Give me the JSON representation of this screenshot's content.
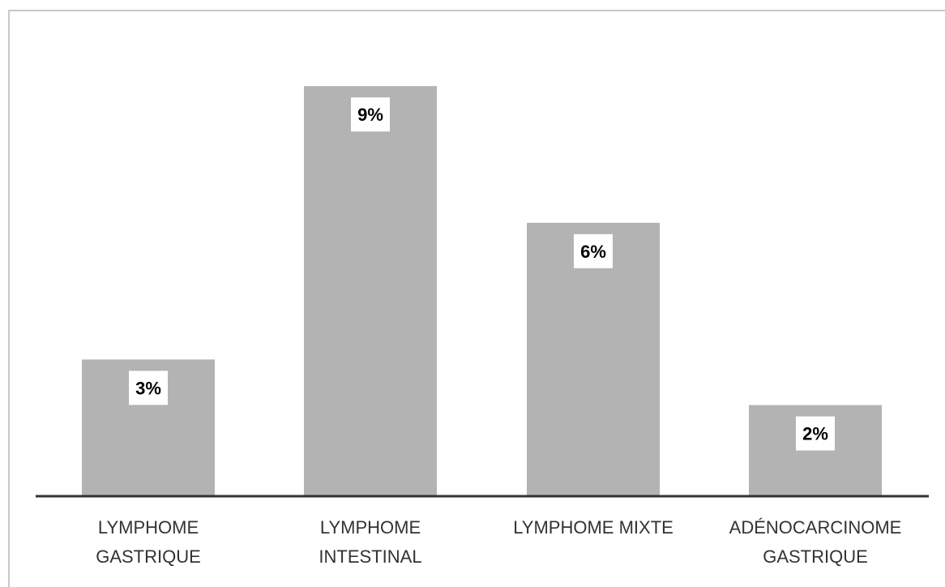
{
  "chart_data": {
    "type": "bar",
    "categories": [
      [
        "LYMPHOME",
        "GASTRIQUE"
      ],
      [
        "LYMPHOME",
        "INTESTINAL"
      ],
      [
        "LYMPHOME MIXTE"
      ],
      [
        "ADÉNOCARCINOME",
        "GASTRIQUE"
      ]
    ],
    "values": [
      3,
      9,
      6,
      2
    ],
    "data_labels": [
      "3%",
      "9%",
      "6%",
      "2%"
    ],
    "title": "",
    "xlabel": "",
    "ylabel": "",
    "ylim": [
      0,
      10
    ],
    "grid": false,
    "bar_color": "#b3b3b3",
    "axis_color": "#333333"
  }
}
